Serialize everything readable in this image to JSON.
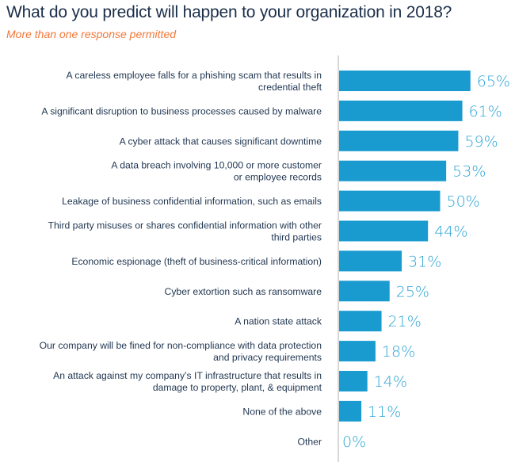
{
  "chart_data": {
    "type": "bar",
    "orientation": "horizontal",
    "title": "What do you predict will happen to your organization in 2018?",
    "subtitle": "More than one response permitted",
    "xlabel": "",
    "ylabel": "",
    "xlim": [
      0,
      100
    ],
    "grid": false,
    "legend": "none",
    "value_suffix": "%",
    "colors": {
      "bar": "#1a9bd0",
      "value_label": "#2fa6d6",
      "category_label": "#1f3550",
      "title": "#1b2f4a",
      "subtitle": "#f07838",
      "axis": "#cccccc"
    },
    "categories": [
      [
        "A careless employee falls for a phishing scam that results in",
        "credential theft"
      ],
      [
        "A significant disruption to business processes caused by malware"
      ],
      [
        "A cyber attack that causes significant downtime"
      ],
      [
        "A data breach involving 10,000 or more customer",
        "or employee records"
      ],
      [
        "Leakage of business confidential information, such as emails"
      ],
      [
        "Third party misuses or shares confidential information with other",
        "third parties"
      ],
      [
        "Economic espionage (theft of business-critical information)"
      ],
      [
        "Cyber extortion such as ransomware"
      ],
      [
        "A nation state attack"
      ],
      [
        "Our company will be fined for non-compliance with data protection",
        "and privacy requirements"
      ],
      [
        "An attack against my company’s IT infrastructure that results in",
        "damage to property, plant, & equipment"
      ],
      [
        "None of the above"
      ],
      [
        "Other"
      ]
    ],
    "values": [
      65,
      61,
      59,
      53,
      50,
      44,
      31,
      25,
      21,
      18,
      14,
      11,
      0
    ],
    "value_labels": [
      "65%",
      "61%",
      "59%",
      "53%",
      "50%",
      "44%",
      "31%",
      "25%",
      "21%",
      "18%",
      "14%",
      "11%",
      "0%"
    ]
  }
}
